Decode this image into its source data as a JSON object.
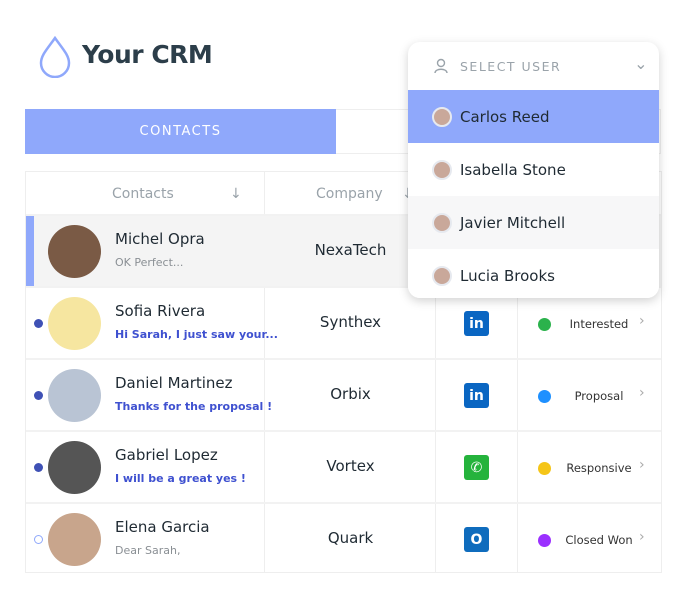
{
  "app": {
    "title": "Your CRM",
    "logo_icon": "droplet-icon",
    "accent": "#8fa8fb"
  },
  "tabs": [
    {
      "label": "CONTACTS",
      "active": true
    }
  ],
  "table": {
    "headers": {
      "contacts": "Contacts",
      "company": "Company"
    },
    "rows": [
      {
        "name": "Michel Opra",
        "message": "OK Perfect...",
        "company": "NexaTech",
        "unread": false,
        "selected": true,
        "avatar_color": "#7a5a45"
      },
      {
        "name": "Sofia Rivera",
        "message": "Hi Sarah, I just saw your...",
        "company": "Synthex",
        "unread": true,
        "channel": "linkedin-icon",
        "channel_label": "in",
        "channel_color": "#0a66c2",
        "status": "Interested",
        "status_color": "#2bb24c",
        "avatar_color": "#f6e6a0"
      },
      {
        "name": "Daniel Martinez",
        "message": "Thanks for the proposal !",
        "company": "Orbix",
        "unread": true,
        "channel": "linkedin-icon",
        "channel_label": "in",
        "channel_color": "#0a66c2",
        "status": "Proposal",
        "status_color": "#1e90ff",
        "avatar_color": "#b9c4d4"
      },
      {
        "name": "Gabriel Lopez",
        "message": "I will be a great yes !",
        "company": "Vortex",
        "unread": true,
        "channel": "whatsapp-icon",
        "channel_label": "✆",
        "channel_color": "#25b33c",
        "status": "Responsive",
        "status_color": "#f5c518",
        "avatar_color": "#555"
      },
      {
        "name": "Elena Garcia",
        "message": "Dear Sarah,",
        "company": "Quark",
        "unread": false,
        "channel": "outlook-icon",
        "channel_label": "O",
        "channel_color": "#0f6cbd",
        "status": "Closed Won",
        "status_color": "#9b30ff",
        "avatar_color": "#c8a58c"
      }
    ]
  },
  "user_dropdown": {
    "placeholder": "SELECT USER",
    "options": [
      {
        "label": "Carlos Reed",
        "active": true
      },
      {
        "label": "Isabella Stone"
      },
      {
        "label": "Javier Mitchell"
      },
      {
        "label": "Lucia Brooks"
      }
    ]
  }
}
